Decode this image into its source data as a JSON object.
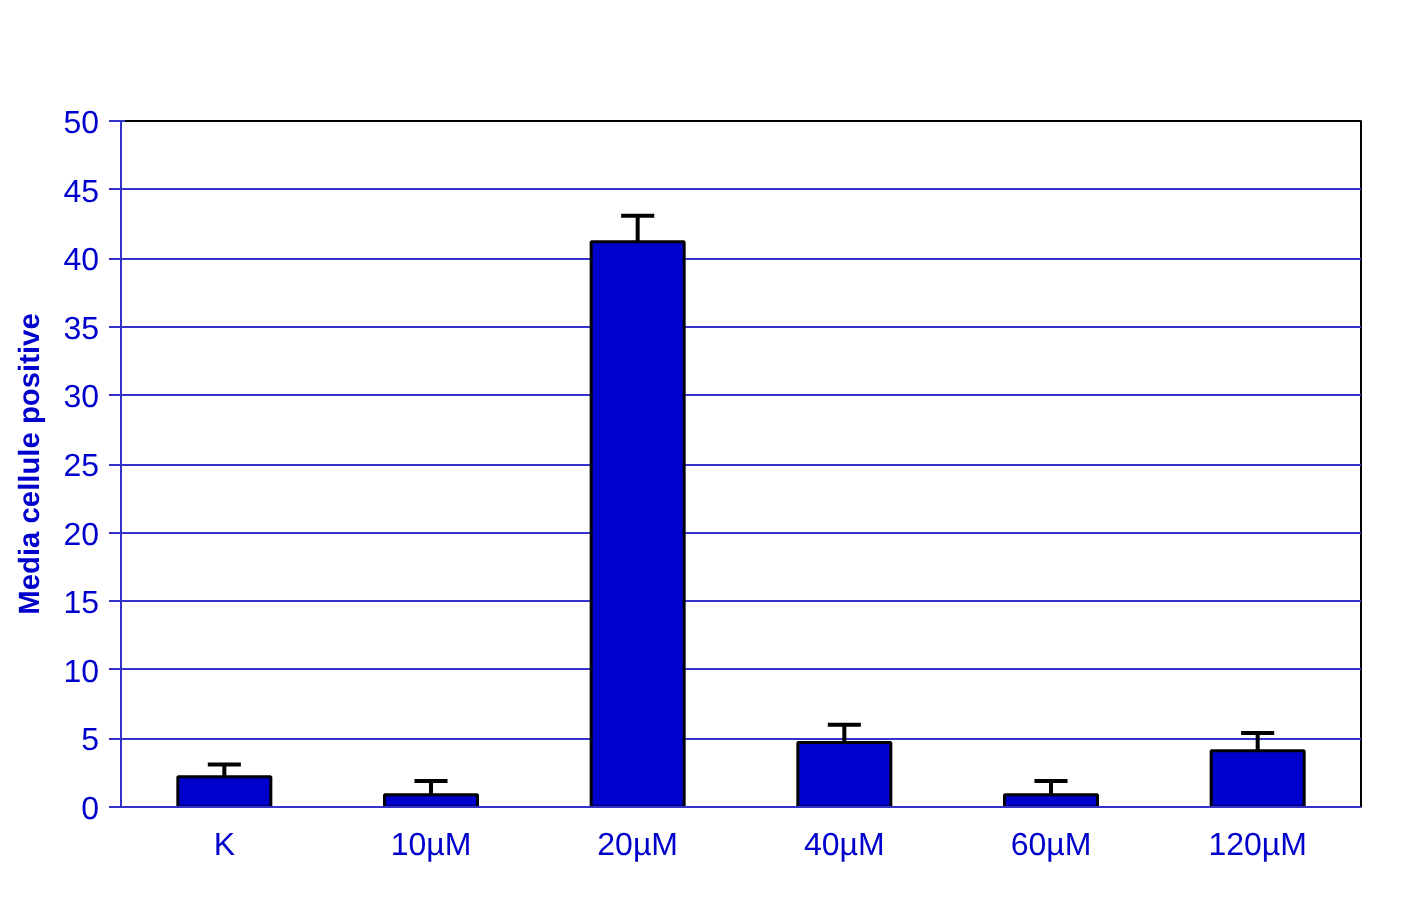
{
  "chart_data": {
    "type": "bar",
    "ylabel": "Media cellule positive",
    "categories": [
      "K",
      "10µM",
      "20µM",
      "40µM",
      "60µM",
      "120µM"
    ],
    "values": [
      2.2,
      0.9,
      41.2,
      4.7,
      0.9,
      4.1
    ],
    "errors": [
      [
        2.2,
        3.1
      ],
      [
        0.9,
        1.9
      ],
      [
        41.2,
        43.1
      ],
      [
        4.7,
        6.0
      ],
      [
        0.9,
        1.9
      ],
      [
        4.1,
        5.4
      ]
    ],
    "color": "#0000cc",
    "ylim": [
      0,
      50
    ],
    "yticks": [
      0,
      5,
      10,
      15,
      20,
      25,
      30,
      35,
      40,
      45,
      50
    ],
    "grid": "y"
  }
}
